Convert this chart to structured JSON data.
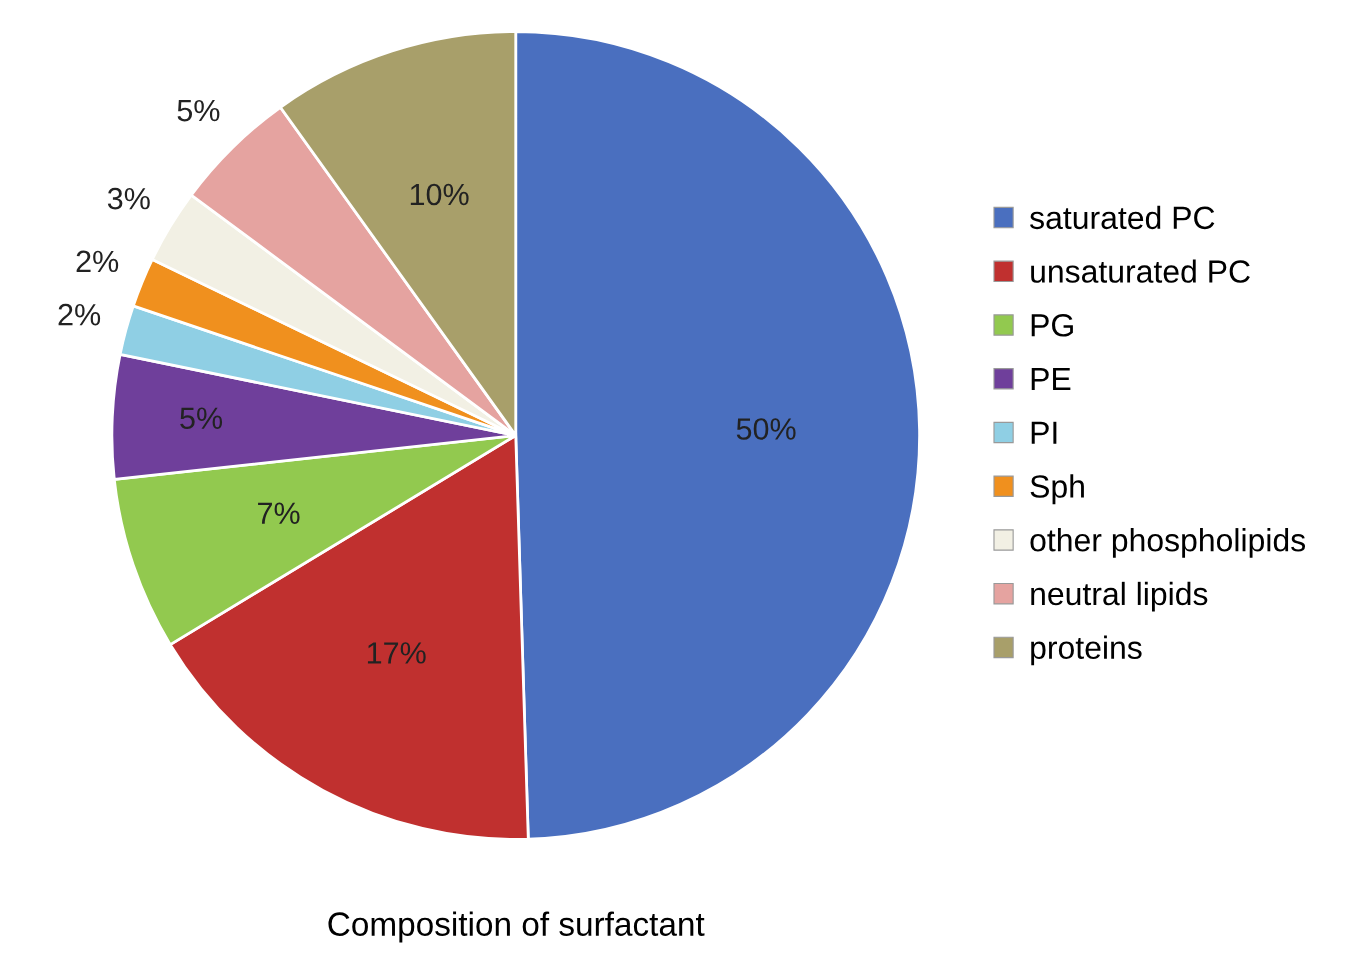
{
  "chart_data": {
    "type": "pie",
    "title": "Composition of surfactant",
    "categories": [
      "saturated PC",
      "unsaturated PC",
      "PG",
      "PE",
      "PI",
      "Sph",
      "other phospholipids",
      "neutral lipids",
      "proteins"
    ],
    "values": [
      50,
      17,
      7,
      5,
      2,
      2,
      3,
      5,
      10
    ],
    "colors": [
      "#4a6fbf",
      "#c0302f",
      "#92c94f",
      "#6f3f9b",
      "#8fcfe4",
      "#f0901e",
      "#f2f0e4",
      "#e5a3a0",
      "#a89f6a"
    ],
    "value_labels": [
      "50%",
      "17%",
      "7%",
      "5%",
      "2%",
      "2%",
      "3%",
      "5%",
      "10%"
    ],
    "legend": "right"
  }
}
